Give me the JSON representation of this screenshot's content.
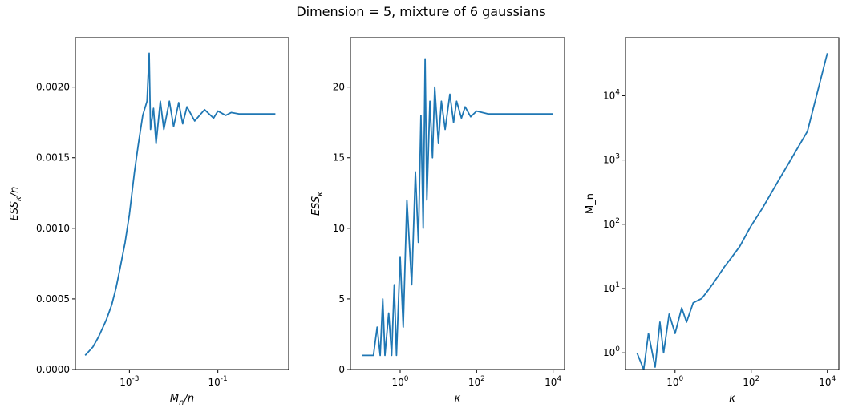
{
  "figure": {
    "suptitle": "Dimension = 5, mixture of 6 gaussians"
  },
  "colors": {
    "series": "#1f77b4",
    "axes": "#000000",
    "background": "#ffffff"
  },
  "chart_data": [
    {
      "type": "line",
      "xscale": "log",
      "yscale": "linear",
      "xlabel": "M_n/n",
      "ylabel": "ESS_κ/n",
      "xlim": [
        6e-05,
        4.0
      ],
      "ylim": [
        0,
        0.00235
      ],
      "xticks": [
        0.001,
        0.1
      ],
      "xtick_labels": [
        "10^-3",
        "10^-1"
      ],
      "yticks": [
        0.0,
        0.0005,
        0.001,
        0.0015,
        0.002
      ],
      "ytick_labels": [
        "0.0000",
        "0.0005",
        "0.0010",
        "0.0015",
        "0.0020"
      ],
      "series": [
        {
          "x": [
            0.0001,
            0.00015,
            0.0002,
            0.0003,
            0.0004,
            0.0005,
            0.0006,
            0.0008,
            0.001,
            0.0013,
            0.0016,
            0.002,
            0.0025,
            0.0028,
            0.003,
            0.0035,
            0.004,
            0.005,
            0.006,
            0.008,
            0.01,
            0.013,
            0.016,
            0.02,
            0.03,
            0.05,
            0.08,
            0.1,
            0.15,
            0.2,
            0.3,
            0.5,
            1.0,
            2.0
          ],
          "y": [
            0.0001,
            0.00016,
            0.00023,
            0.00035,
            0.00046,
            0.00058,
            0.0007,
            0.0009,
            0.0011,
            0.0014,
            0.0016,
            0.0018,
            0.0019,
            0.00224,
            0.0017,
            0.00185,
            0.0016,
            0.0019,
            0.0017,
            0.0019,
            0.00172,
            0.00189,
            0.00174,
            0.00186,
            0.00176,
            0.00184,
            0.00178,
            0.00183,
            0.0018,
            0.00182,
            0.00181,
            0.00181,
            0.00181,
            0.00181
          ]
        }
      ]
    },
    {
      "type": "line",
      "xscale": "log",
      "yscale": "linear",
      "xlabel": "κ",
      "ylabel": "ESS_κ",
      "xlim": [
        0.05,
        20000
      ],
      "ylim": [
        0,
        23.5
      ],
      "xticks": [
        1,
        100,
        10000
      ],
      "xtick_labels": [
        "10^0",
        "10^2",
        "10^4"
      ],
      "yticks": [
        0,
        5,
        10,
        15,
        20
      ],
      "ytick_labels": [
        "0",
        "5",
        "10",
        "15",
        "20"
      ],
      "series": [
        {
          "x": [
            0.1,
            0.2,
            0.25,
            0.3,
            0.35,
            0.4,
            0.5,
            0.6,
            0.7,
            0.8,
            1.0,
            1.2,
            1.5,
            2.0,
            2.5,
            3.0,
            3.5,
            4.0,
            4.5,
            5.0,
            6.0,
            7.0,
            8.0,
            10,
            12,
            15,
            20,
            25,
            30,
            40,
            50,
            70,
            100,
            200,
            500,
            1000,
            10000
          ],
          "y": [
            1,
            1,
            3,
            1,
            5,
            1,
            4,
            1,
            6,
            1,
            8,
            3,
            12,
            6,
            14,
            9,
            18,
            10,
            22,
            12,
            19,
            15,
            20,
            16,
            19,
            17,
            19.5,
            17.5,
            19,
            17.8,
            18.6,
            17.9,
            18.3,
            18.1,
            18.1,
            18.1,
            18.1
          ]
        }
      ]
    },
    {
      "type": "line",
      "xscale": "log",
      "yscale": "log",
      "xlabel": "κ",
      "ylabel": "M_n",
      "xlim": [
        0.05,
        20000
      ],
      "ylim": [
        0.55,
        80000
      ],
      "xticks": [
        1,
        100,
        10000
      ],
      "xtick_labels": [
        "10^0",
        "10^2",
        "10^4"
      ],
      "yticks": [
        1,
        10,
        100,
        1000,
        10000
      ],
      "ytick_labels": [
        "10^0",
        "10^1",
        "10^2",
        "10^3",
        "10^4"
      ],
      "series": [
        {
          "x": [
            0.1,
            0.15,
            0.2,
            0.3,
            0.4,
            0.5,
            0.7,
            1.0,
            1.5,
            2.0,
            3.0,
            5.0,
            7.0,
            10,
            20,
            30,
            50,
            100,
            200,
            500,
            1000,
            3000,
            10000
          ],
          "y": [
            1,
            0.55,
            2,
            0.6,
            3,
            1,
            4,
            2,
            5,
            3,
            6,
            7,
            9,
            12,
            22,
            30,
            45,
            95,
            180,
            460,
            920,
            2800,
            46000
          ]
        }
      ]
    }
  ]
}
